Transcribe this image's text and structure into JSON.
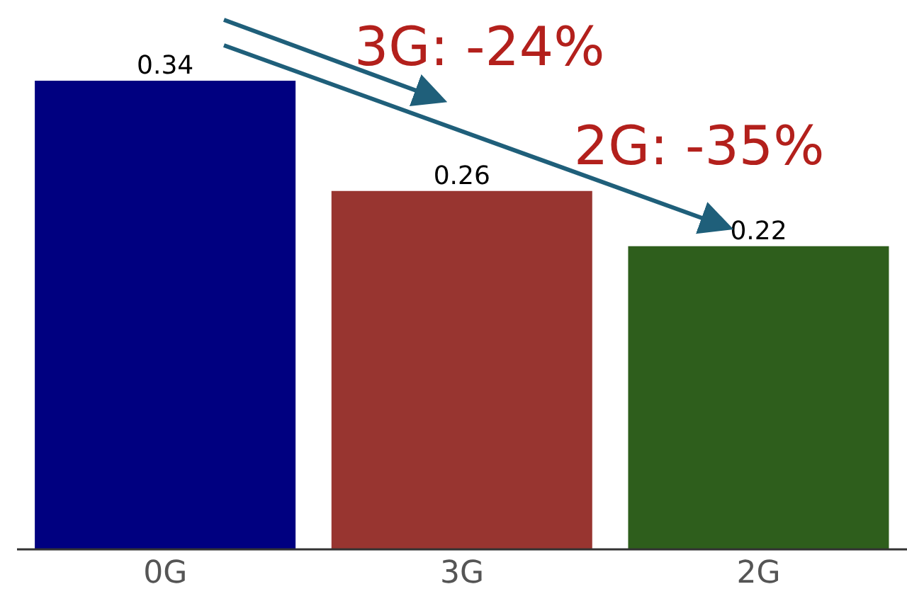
{
  "chart_data": {
    "type": "bar",
    "categories": [
      "0G",
      "3G",
      "2G"
    ],
    "values": [
      0.34,
      0.26,
      0.22
    ],
    "colors": [
      "#000080",
      "#983530",
      "#2e5e1c"
    ],
    "data_labels": true,
    "annotations": [
      "3G: -24%",
      "2G: -35%"
    ]
  }
}
